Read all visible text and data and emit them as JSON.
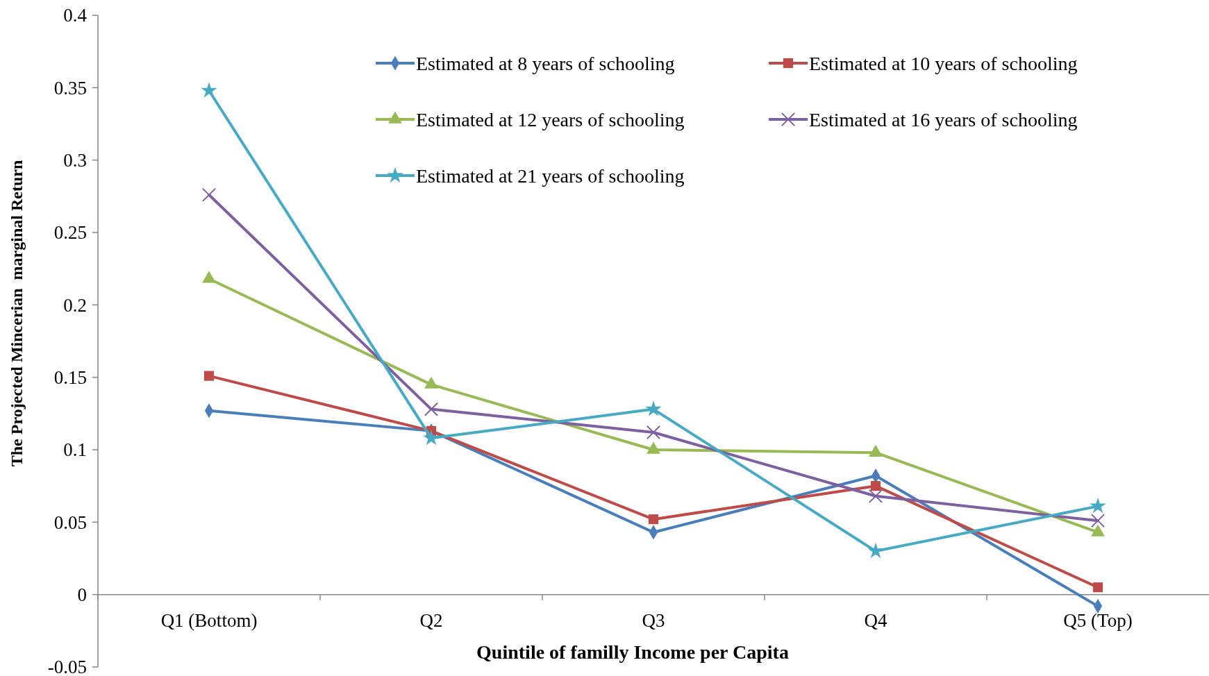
{
  "chart_data": {
    "type": "line",
    "xlabel": "Quintile of familly Income per Capita",
    "ylabel": "The Projected Mincerian  marginal Return",
    "categories": [
      "Q1 (Bottom)",
      "Q2",
      "Q3",
      "Q4",
      "Q5 (Top)"
    ],
    "ylim": [
      -0.05,
      0.4
    ],
    "yticks": [
      -0.05,
      0,
      0.05,
      0.1,
      0.15,
      0.2,
      0.25,
      0.3,
      0.35,
      0.4
    ],
    "grid": false,
    "legend": "top right",
    "series": [
      {
        "name": "Estimated at 8 years of schooling",
        "color": "#4a7ebb",
        "marker": "diamond",
        "values": [
          0.127,
          0.113,
          0.043,
          0.082,
          -0.008
        ]
      },
      {
        "name": "Estimated at 10 years of schooling",
        "color": "#be4b48",
        "marker": "square",
        "values": [
          0.151,
          0.113,
          0.052,
          0.075,
          0.005
        ]
      },
      {
        "name": "Estimated at 12 years of schooling",
        "color": "#98b954",
        "marker": "triangle",
        "values": [
          0.218,
          0.145,
          0.1,
          0.098,
          0.043
        ]
      },
      {
        "name": "Estimated at 16 years of schooling",
        "color": "#7d60a0",
        "marker": "cross",
        "values": [
          0.276,
          0.128,
          0.112,
          0.068,
          0.051
        ]
      },
      {
        "name": "Estimated at 21 years of schooling",
        "color": "#46aac5",
        "marker": "star",
        "values": [
          0.348,
          0.108,
          0.128,
          0.03,
          0.061
        ]
      }
    ]
  }
}
